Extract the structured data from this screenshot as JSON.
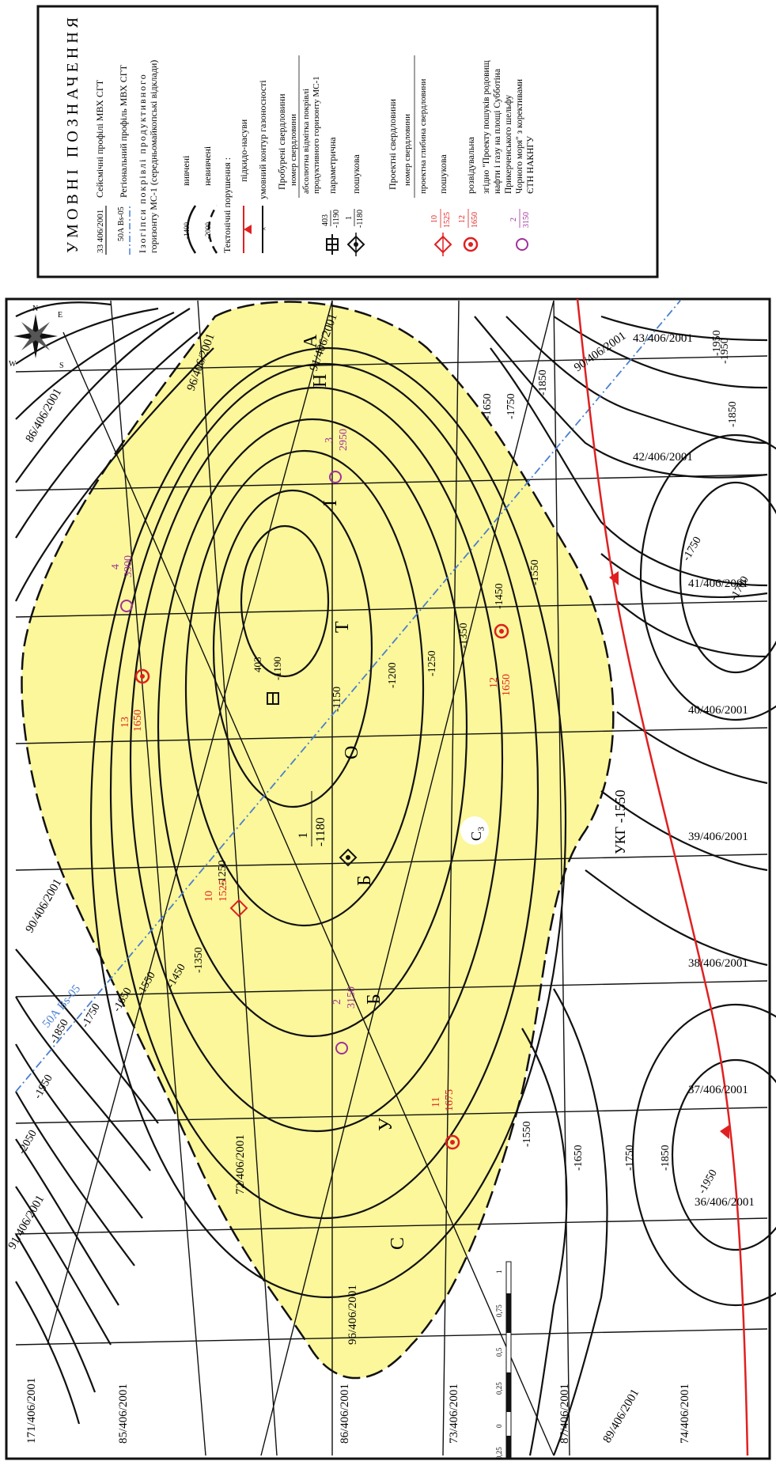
{
  "legend": {
    "title": "УМОВНІ ПОЗНАЧЕННЯ",
    "seismic_sample": "33 406/2001",
    "seismic_text": "Сейсмічні профілі МВХ СГТ",
    "regional_sample": "50А Bs-05",
    "regional_text": "Регіональний профіль МВХ СГТ",
    "isohypse_text_1": "Ізогіпси покрівлі продуктивного",
    "isohypse_text_2": "горизонту МС-1 (середньомайкопські відклади)",
    "reliable_value": "-1400",
    "reliable_label": "вивчені",
    "unreliable_value": "-2000",
    "unreliable_label": "невивчені",
    "tectonic_title": "Тектонічні порушення :",
    "tectonic_item": "підкидо-насуви",
    "gas_contour": "умовний контур газоносності",
    "drilled_title": "Пробурені свердловини",
    "well_number_line": "номер свердловини",
    "abs_mark_line_1": "абсолютна відмітка покрівлі",
    "abs_mark_line_2": "продуктивного горизонту МС-1",
    "param_num": "403",
    "param_val": "-1190",
    "param_label": "параметрична",
    "search_num": "1",
    "search_val": "-1180",
    "search_label": "пошукова",
    "projected_title": "Проектні свердловини",
    "proj_number_line": "номер свердловини",
    "proj_depth_line": "проектна глибина свердловини",
    "proj_search_num": "10",
    "proj_search_val": "1525",
    "proj_search_label": "пошукова",
    "proj_explore_num": "12",
    "proj_explore_val": "1650",
    "proj_explore_label": "розвідувальна",
    "proj_other_num": "2",
    "proj_other_val": "3150",
    "proj_other_line_1": "згідно \"Проекту пошуків родовищ",
    "proj_other_line_2": "нафти і газу на площі Субботіна",
    "proj_other_line_3": "Прикерченського шельфу",
    "proj_other_line_4": "Чорного моря\" з корективами",
    "proj_other_line_5": "ЄТН НАКНГУ"
  },
  "structure_letters": [
    "С",
    "У",
    "Б",
    "Б",
    "О",
    "Т",
    "І",
    "Н",
    "А"
  ],
  "profiles": [
    "36/406/2001",
    "37/406/2001",
    "38/406/2001",
    "39/406/2001",
    "40/406/2001",
    "41/406/2001",
    "42/406/2001",
    "43/406/2001",
    "90/406/2001",
    "91/406/2001",
    "96/406/2001",
    "86/406/2001",
    "73/406/2001",
    "72/406/2001",
    "85/406/2001",
    "171/406/2001",
    "87/406/2001",
    "89/406/2001",
    "74/406/2001",
    "90/406/2001",
    "91/406/2001",
    "96/406/2001",
    "86/406/2001"
  ],
  "regional_profile": "50А Bs-05",
  "contours": [
    "-1150",
    "-1200",
    "-1250",
    "-1350",
    "-1450",
    "-1550",
    "-1650",
    "-1750",
    "-1850",
    "-1950",
    "-1250",
    "-1350",
    "-1450",
    "-1550",
    "-1650",
    "-1750",
    "-1850",
    "-1950",
    "-2050",
    "-1550",
    "-1650",
    "-1750",
    "-1850",
    "-1950",
    "-1850",
    "-1950",
    "-1750",
    "-1700"
  ],
  "ukg_label": "УКГ -1550",
  "zone_label": "С₃",
  "wells": {
    "w403": {
      "num": "403",
      "val": "-1190"
    },
    "w1": {
      "num": "1",
      "val": "-1180"
    },
    "w10": {
      "num": "10",
      "val": "1525"
    },
    "w12": {
      "num": "12",
      "val": "1650"
    },
    "w13": {
      "num": "13",
      "val": "1650"
    },
    "w11": {
      "num": "11",
      "val": "1675"
    },
    "w2": {
      "num": "2",
      "val": "3150"
    },
    "w3": {
      "num": "3",
      "val": "2950"
    },
    "w4": {
      "num": "4",
      "val": "3900"
    }
  },
  "scale": [
    "0,25",
    "0",
    "0,25",
    "0,5",
    "0,75",
    "1"
  ],
  "compass": {
    "n": "N",
    "s": "S",
    "w": "W",
    "e": "E"
  },
  "colors": {
    "gas_fill": "#fbf79a",
    "fault": "#e02020",
    "regional": "#4a7fd0",
    "projected_well": "#e02020",
    "other_well": "#a0309a"
  }
}
